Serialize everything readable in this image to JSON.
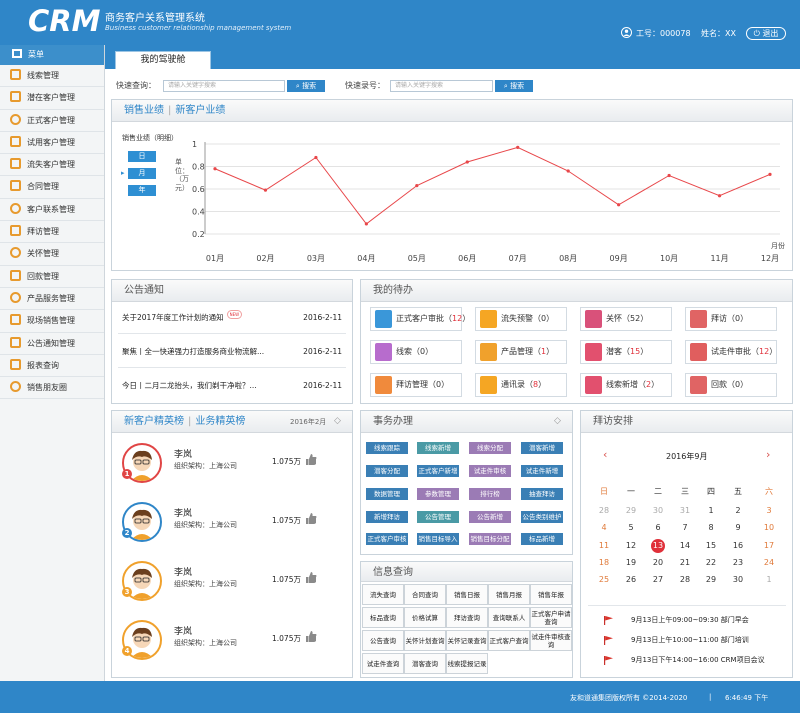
{
  "header": {
    "logo": "CRM",
    "title_cn": "商务客户关系管理系统",
    "title_en": "Business customer relationship management system",
    "employee_id": "工号：000078",
    "name": "姓名：XX",
    "exit_label": "退出"
  },
  "sidebar": {
    "header": "菜单",
    "items": [
      "线索管理",
      "潜在客户管理",
      "正式客户管理",
      "试用客户管理",
      "流失客户管理",
      "合同管理",
      "客户联系管理",
      "拜访管理",
      "关怀管理",
      "回款管理",
      "产品服务管理",
      "现场销售管理",
      "公告通知管理",
      "报表查询",
      "销售朋友圈"
    ]
  },
  "tab": {
    "label": "我的驾驶舱"
  },
  "search": {
    "quick_query_label": "快速查询：",
    "quick_query_placeholder": "请输入关键字搜索",
    "quick_entry_label": "快速录号：",
    "quick_entry_placeholder": "请输入关键字搜索",
    "button_label": "搜索"
  },
  "sales_panel": {
    "tab_active": "销售业绩",
    "tab_other": "新客户业绩",
    "caption": "销售业绩（明细）",
    "ylabel": "单位：（万元）",
    "period_buttons": [
      "日",
      "月",
      "年"
    ],
    "x_unit": "月份"
  },
  "chart_data": {
    "type": "line",
    "title": "销售业绩（明细）",
    "xlabel": "月份",
    "ylabel": "单位：（万元）",
    "categories": [
      "01月",
      "02月",
      "03月",
      "04月",
      "05月",
      "06月",
      "07月",
      "08月",
      "09月",
      "10月",
      "11月",
      "12月"
    ],
    "values": [
      0.78,
      0.59,
      0.88,
      0.29,
      0.63,
      0.84,
      0.97,
      0.76,
      0.46,
      0.72,
      0.54,
      0.73
    ],
    "ylim": [
      0.2,
      1.0
    ],
    "yticks": [
      "1",
      "0.8",
      "0.6",
      "0.4",
      "0.2"
    ],
    "grid": true,
    "colors": {
      "line": "#e8474a",
      "grid": "#e3e3e3"
    }
  },
  "notice": {
    "title": "公告通知",
    "new_badge": "NEW",
    "items": [
      {
        "text": "关于2017年度工作计划的通知",
        "date": "2016-2-11"
      },
      {
        "text": "聚焦丨全一快递强力打造服务商业物流解...",
        "date": "2016-2-11"
      },
      {
        "text": "今日丨二月二龙抬头，我们剃干净啦？...",
        "date": "2016-2-11"
      }
    ]
  },
  "todo": {
    "title": "我的待办",
    "items": [
      {
        "label": "正式客户审批",
        "count": "12",
        "color": "#3a97d9",
        "red": true
      },
      {
        "label": "流失预警",
        "count": "0",
        "color": "#f5a623",
        "red": false
      },
      {
        "label": "关怀",
        "count": "52",
        "color": "#d9517a",
        "red": false
      },
      {
        "label": "拜访",
        "count": "0",
        "color": "#e06464",
        "red": false
      },
      {
        "label": "线索",
        "count": "0",
        "color": "#b76ccd",
        "red": false
      },
      {
        "label": "产品管理",
        "count": "1",
        "color": "#f0a12c",
        "red": true
      },
      {
        "label": "潜客",
        "count": "15",
        "color": "#e2506e",
        "red": true
      },
      {
        "label": "试走件审批",
        "count": "12",
        "color": "#e05e5e",
        "red": true
      },
      {
        "label": "拜访管理",
        "count": "0",
        "color": "#f08a3c",
        "red": false
      },
      {
        "label": "通讯录",
        "count": "8",
        "color": "#f5a623",
        "red": true
      },
      {
        "label": "线索新增",
        "count": "2",
        "color": "#e2506e",
        "red": true
      },
      {
        "label": "回款",
        "count": "0",
        "color": "#e06464",
        "red": false
      }
    ]
  },
  "ranking": {
    "tab_active": "新客户精英榜",
    "tab_other": "业务精英榜",
    "period": "2016年2月",
    "members": [
      {
        "name": "李岚",
        "org": "组织架构：上海公司",
        "amount": "1.075万",
        "rank": "1",
        "ring": "#e04545"
      },
      {
        "name": "李岚",
        "org": "组织架构：上海公司",
        "amount": "1.075万",
        "rank": "2",
        "ring": "#2f86c8"
      },
      {
        "name": "李岚",
        "org": "组织架构：上海公司",
        "amount": "1.075万",
        "rank": "3",
        "ring": "#f0a12c"
      },
      {
        "name": "李岚",
        "org": "组织架构：上海公司",
        "amount": "1.075万",
        "rank": "4",
        "ring": "#f0a12c"
      }
    ]
  },
  "affairs": {
    "title": "事务办理",
    "tags": [
      [
        "线索跟踪",
        "线索新增",
        "线索分配",
        "潜客新增"
      ],
      [
        "潜客分配",
        "正式客户新增",
        "试走件审核",
        "试走件新增"
      ],
      [
        "数据管理",
        "参数管理",
        "排行榜",
        "抽查拜访"
      ],
      [
        "新增拜访",
        "公告管理",
        "公告新增",
        "公告类别维护"
      ],
      [
        "正式客户审核",
        "销售目标导入",
        "销售目标分配",
        "标品新增"
      ]
    ],
    "tag_colors": [
      [
        "#3a7fb5",
        "#4a9aa5",
        "#9b7bb5",
        "#3a7fb5"
      ],
      [
        "#3a7fb5",
        "#3a7fb5",
        "#9b7bb5",
        "#3a7fb5"
      ],
      [
        "#3a7fb5",
        "#9b7bb5",
        "#9b7bb5",
        "#3a7fb5"
      ],
      [
        "#3a7fb5",
        "#4a9aa5",
        "#9b7bb5",
        "#3a7fb5"
      ],
      [
        "#3a7fb5",
        "#3a7fb5",
        "#9b7bb5",
        "#3a7fb5"
      ]
    ]
  },
  "info": {
    "title": "信息查询",
    "cells": [
      [
        "流失查询",
        "合同查询",
        "销售日报",
        "销售月报",
        "销售年报"
      ],
      [
        "标品查询",
        "价格试算",
        "拜访查询",
        "查询联系人",
        "正式客户申请查询"
      ],
      [
        "公告查询",
        "关怀计划查询",
        "关怀记录查询",
        "正式客户查询",
        "试走件审核查询"
      ],
      [
        "试走件查询",
        "潜客查询",
        "线索提报记录",
        "",
        ""
      ]
    ]
  },
  "calendar": {
    "title": "拜访安排",
    "month": "2016年9月",
    "weekdays": [
      "日",
      "一",
      "二",
      "三",
      "四",
      "五",
      "六"
    ],
    "weeks": [
      [
        "28",
        "29",
        "30",
        "31",
        "1",
        "2",
        "3"
      ],
      [
        "4",
        "5",
        "6",
        "7",
        "8",
        "9",
        "10"
      ],
      [
        "11",
        "12",
        "13",
        "14",
        "15",
        "16",
        "17"
      ],
      [
        "18",
        "19",
        "20",
        "21",
        "22",
        "23",
        "24"
      ],
      [
        "25",
        "26",
        "27",
        "28",
        "29",
        "30",
        "1"
      ]
    ],
    "today": "13",
    "events": [
      "9月13日上午09:00~09:30  部门早会",
      "9月13日上午10:00~11:00  部门培训",
      "9月13日下午14:00~16:00  CRM项目会议"
    ]
  },
  "footer": {
    "copyright": "友和道通集团版权所有 ©2014-2020",
    "time": "6:46:49 下午"
  }
}
